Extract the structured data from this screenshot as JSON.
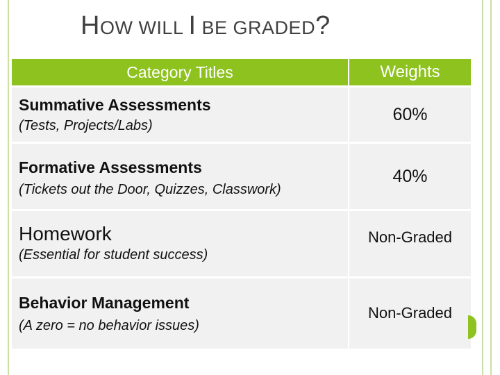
{
  "slide": {
    "title_parts": [
      "H",
      "OW WILL ",
      "I",
      " BE GRADED",
      "?"
    ]
  },
  "table": {
    "headers": [
      "Category Titles",
      "Weights"
    ],
    "rows": [
      {
        "category": "Summative Assessments",
        "detail": "(Tests, Projects/Labs)",
        "weight": "60%"
      },
      {
        "category": "Formative Assessments",
        "detail": "(Tickets out the Door, Quizzes, Classwork)",
        "weight": "40%"
      },
      {
        "category": "Homework",
        "detail": "(Essential for student success)",
        "weight": "Non-Graded"
      },
      {
        "category": "Behavior Management",
        "detail": "(A zero = no behavior issues)",
        "weight": "Non-Graded"
      }
    ]
  },
  "colors": {
    "header_green": "#8dc21f",
    "cell_gray": "#f1f1f1",
    "rail_green": "#c8e0a2"
  }
}
